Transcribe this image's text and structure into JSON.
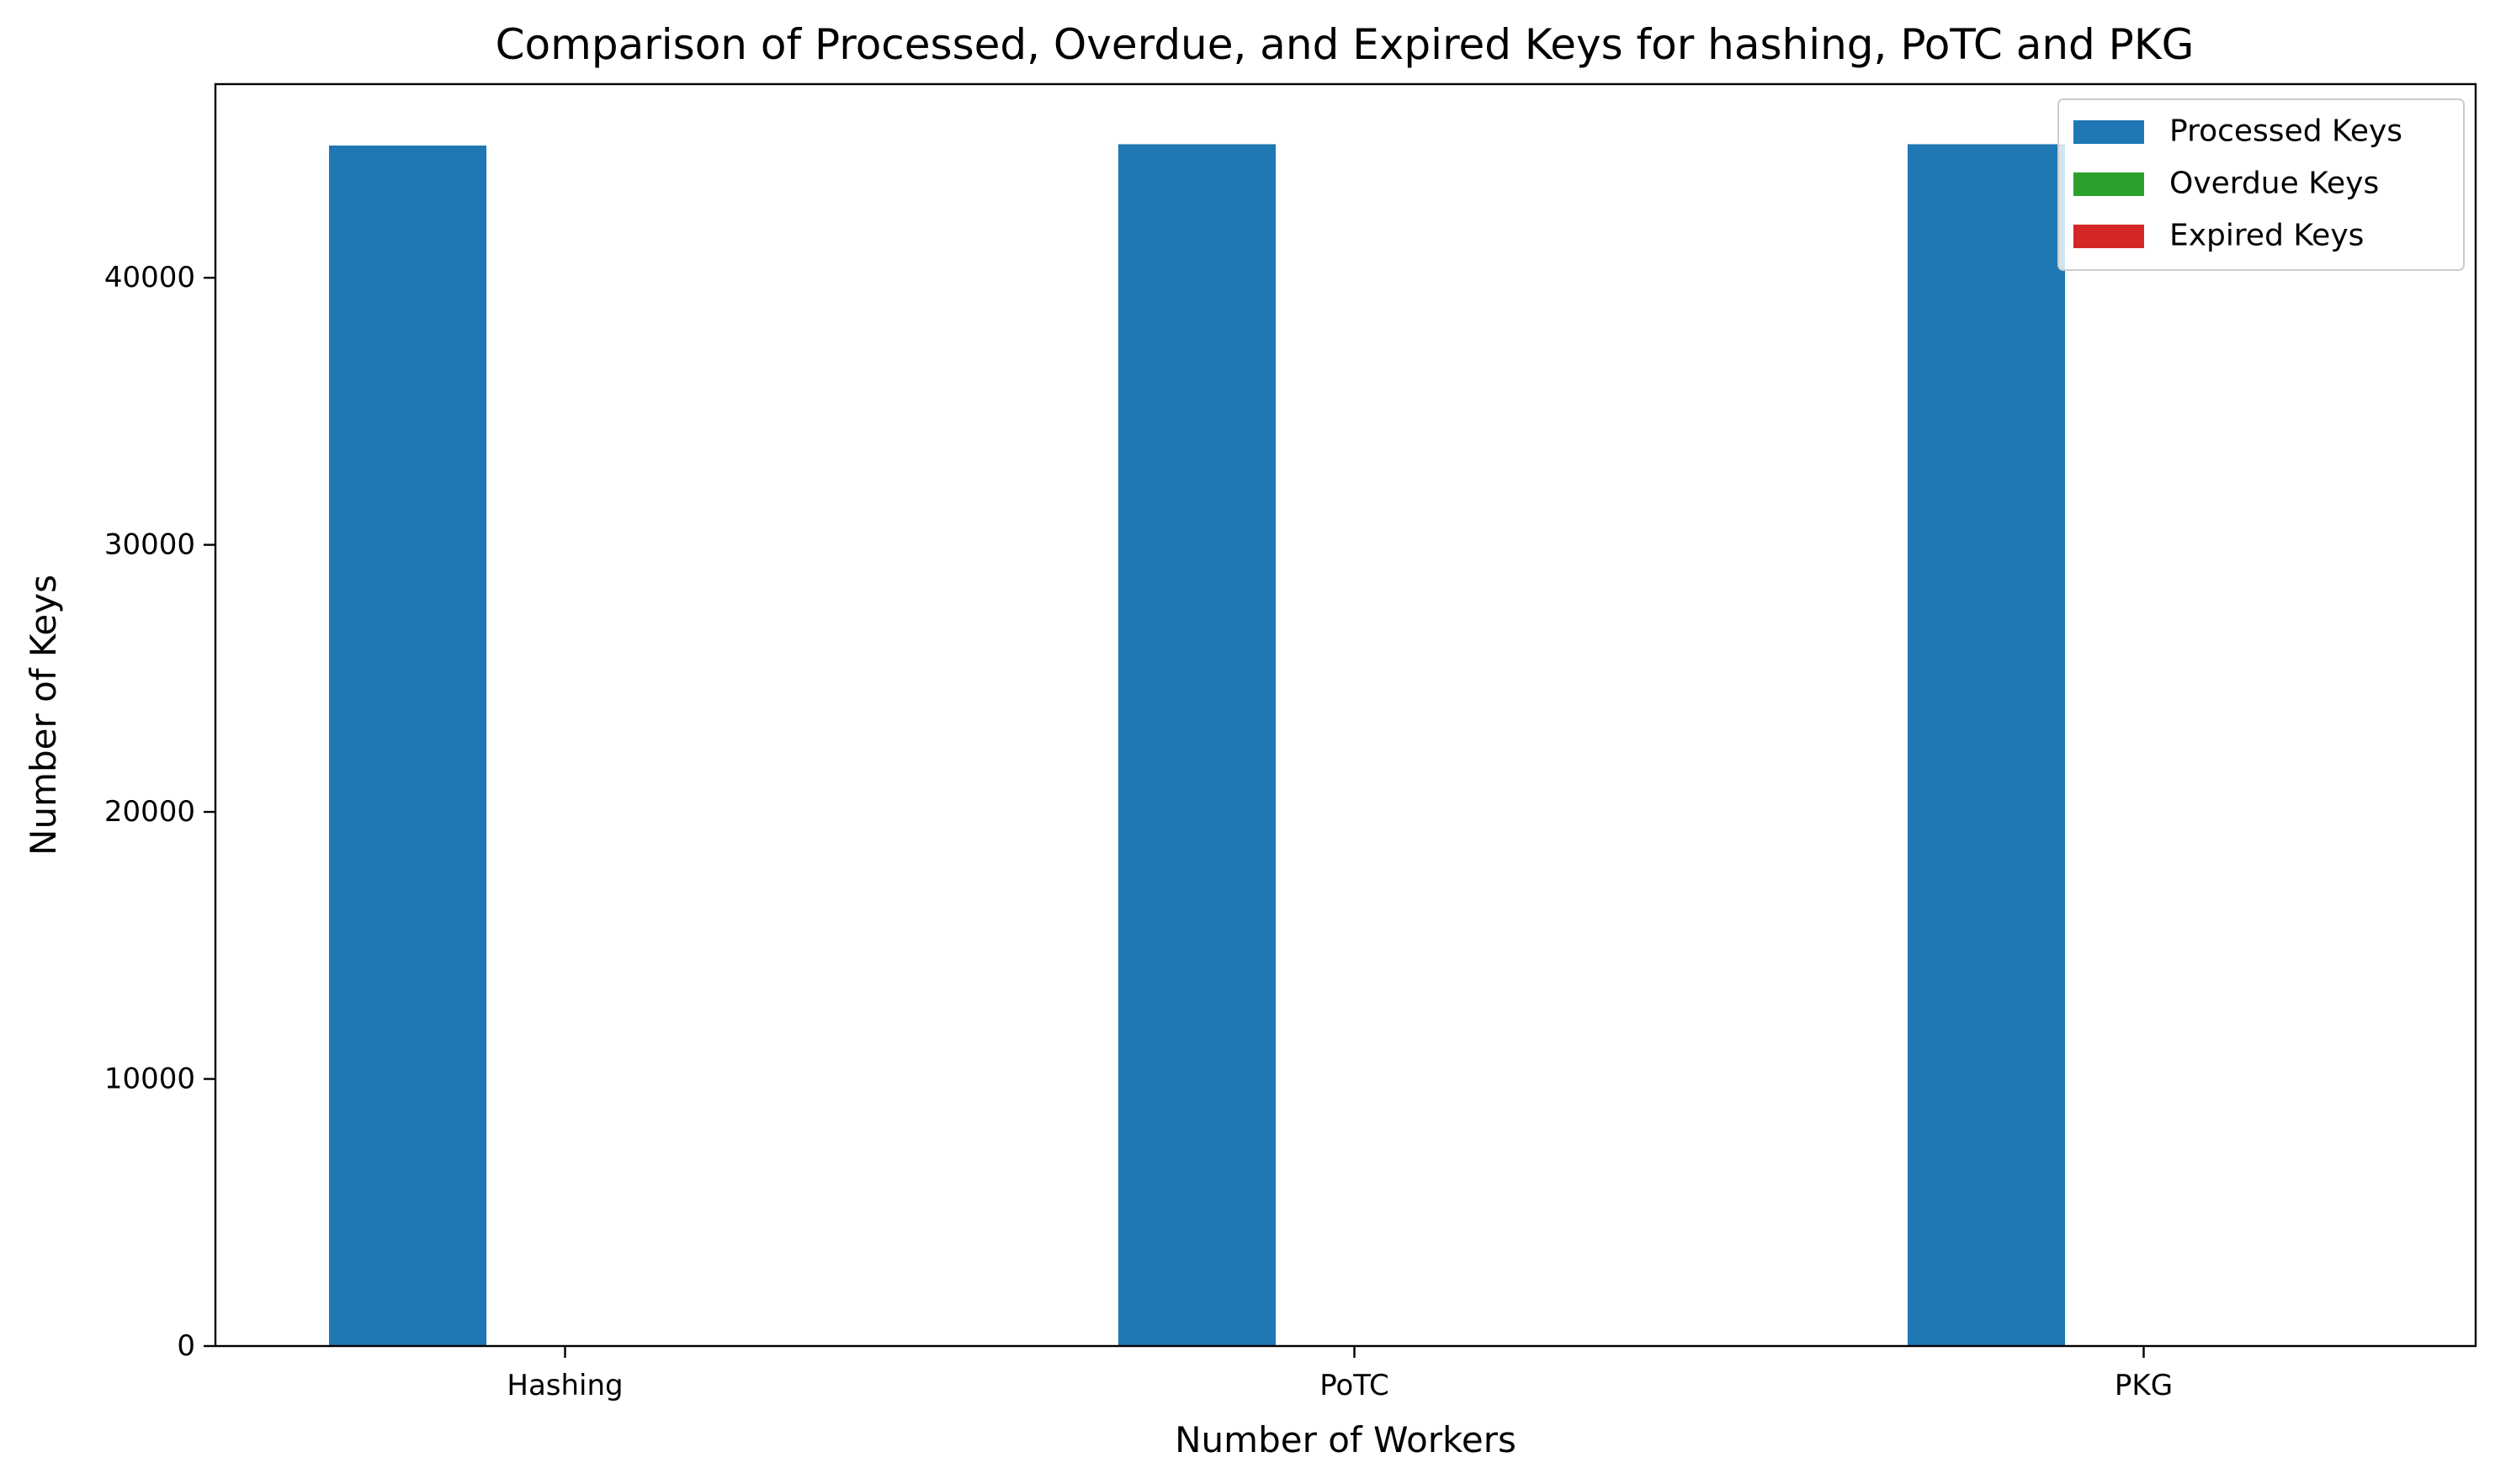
{
  "chart_data": {
    "type": "bar",
    "title": "Comparison of Processed, Overdue, and Expired Keys for hashing, PoTC and PKG",
    "xlabel": "Number of Workers",
    "ylabel": "Number of Keys",
    "categories": [
      "Hashing",
      "PoTC",
      "PKG"
    ],
    "series": [
      {
        "name": "Processed Keys",
        "color": "#1f77b4",
        "values": [
          44950,
          45000,
          45000
        ]
      },
      {
        "name": "Overdue Keys",
        "color": "#2ca02c",
        "values": [
          0,
          0,
          0
        ]
      },
      {
        "name": "Expired Keys",
        "color": "#d62728",
        "values": [
          0,
          0,
          0
        ]
      }
    ],
    "ylim": [
      0,
      47250
    ],
    "yticks": [
      0,
      10000,
      20000,
      30000,
      40000
    ],
    "grid": false,
    "legend_position": "top-right"
  }
}
